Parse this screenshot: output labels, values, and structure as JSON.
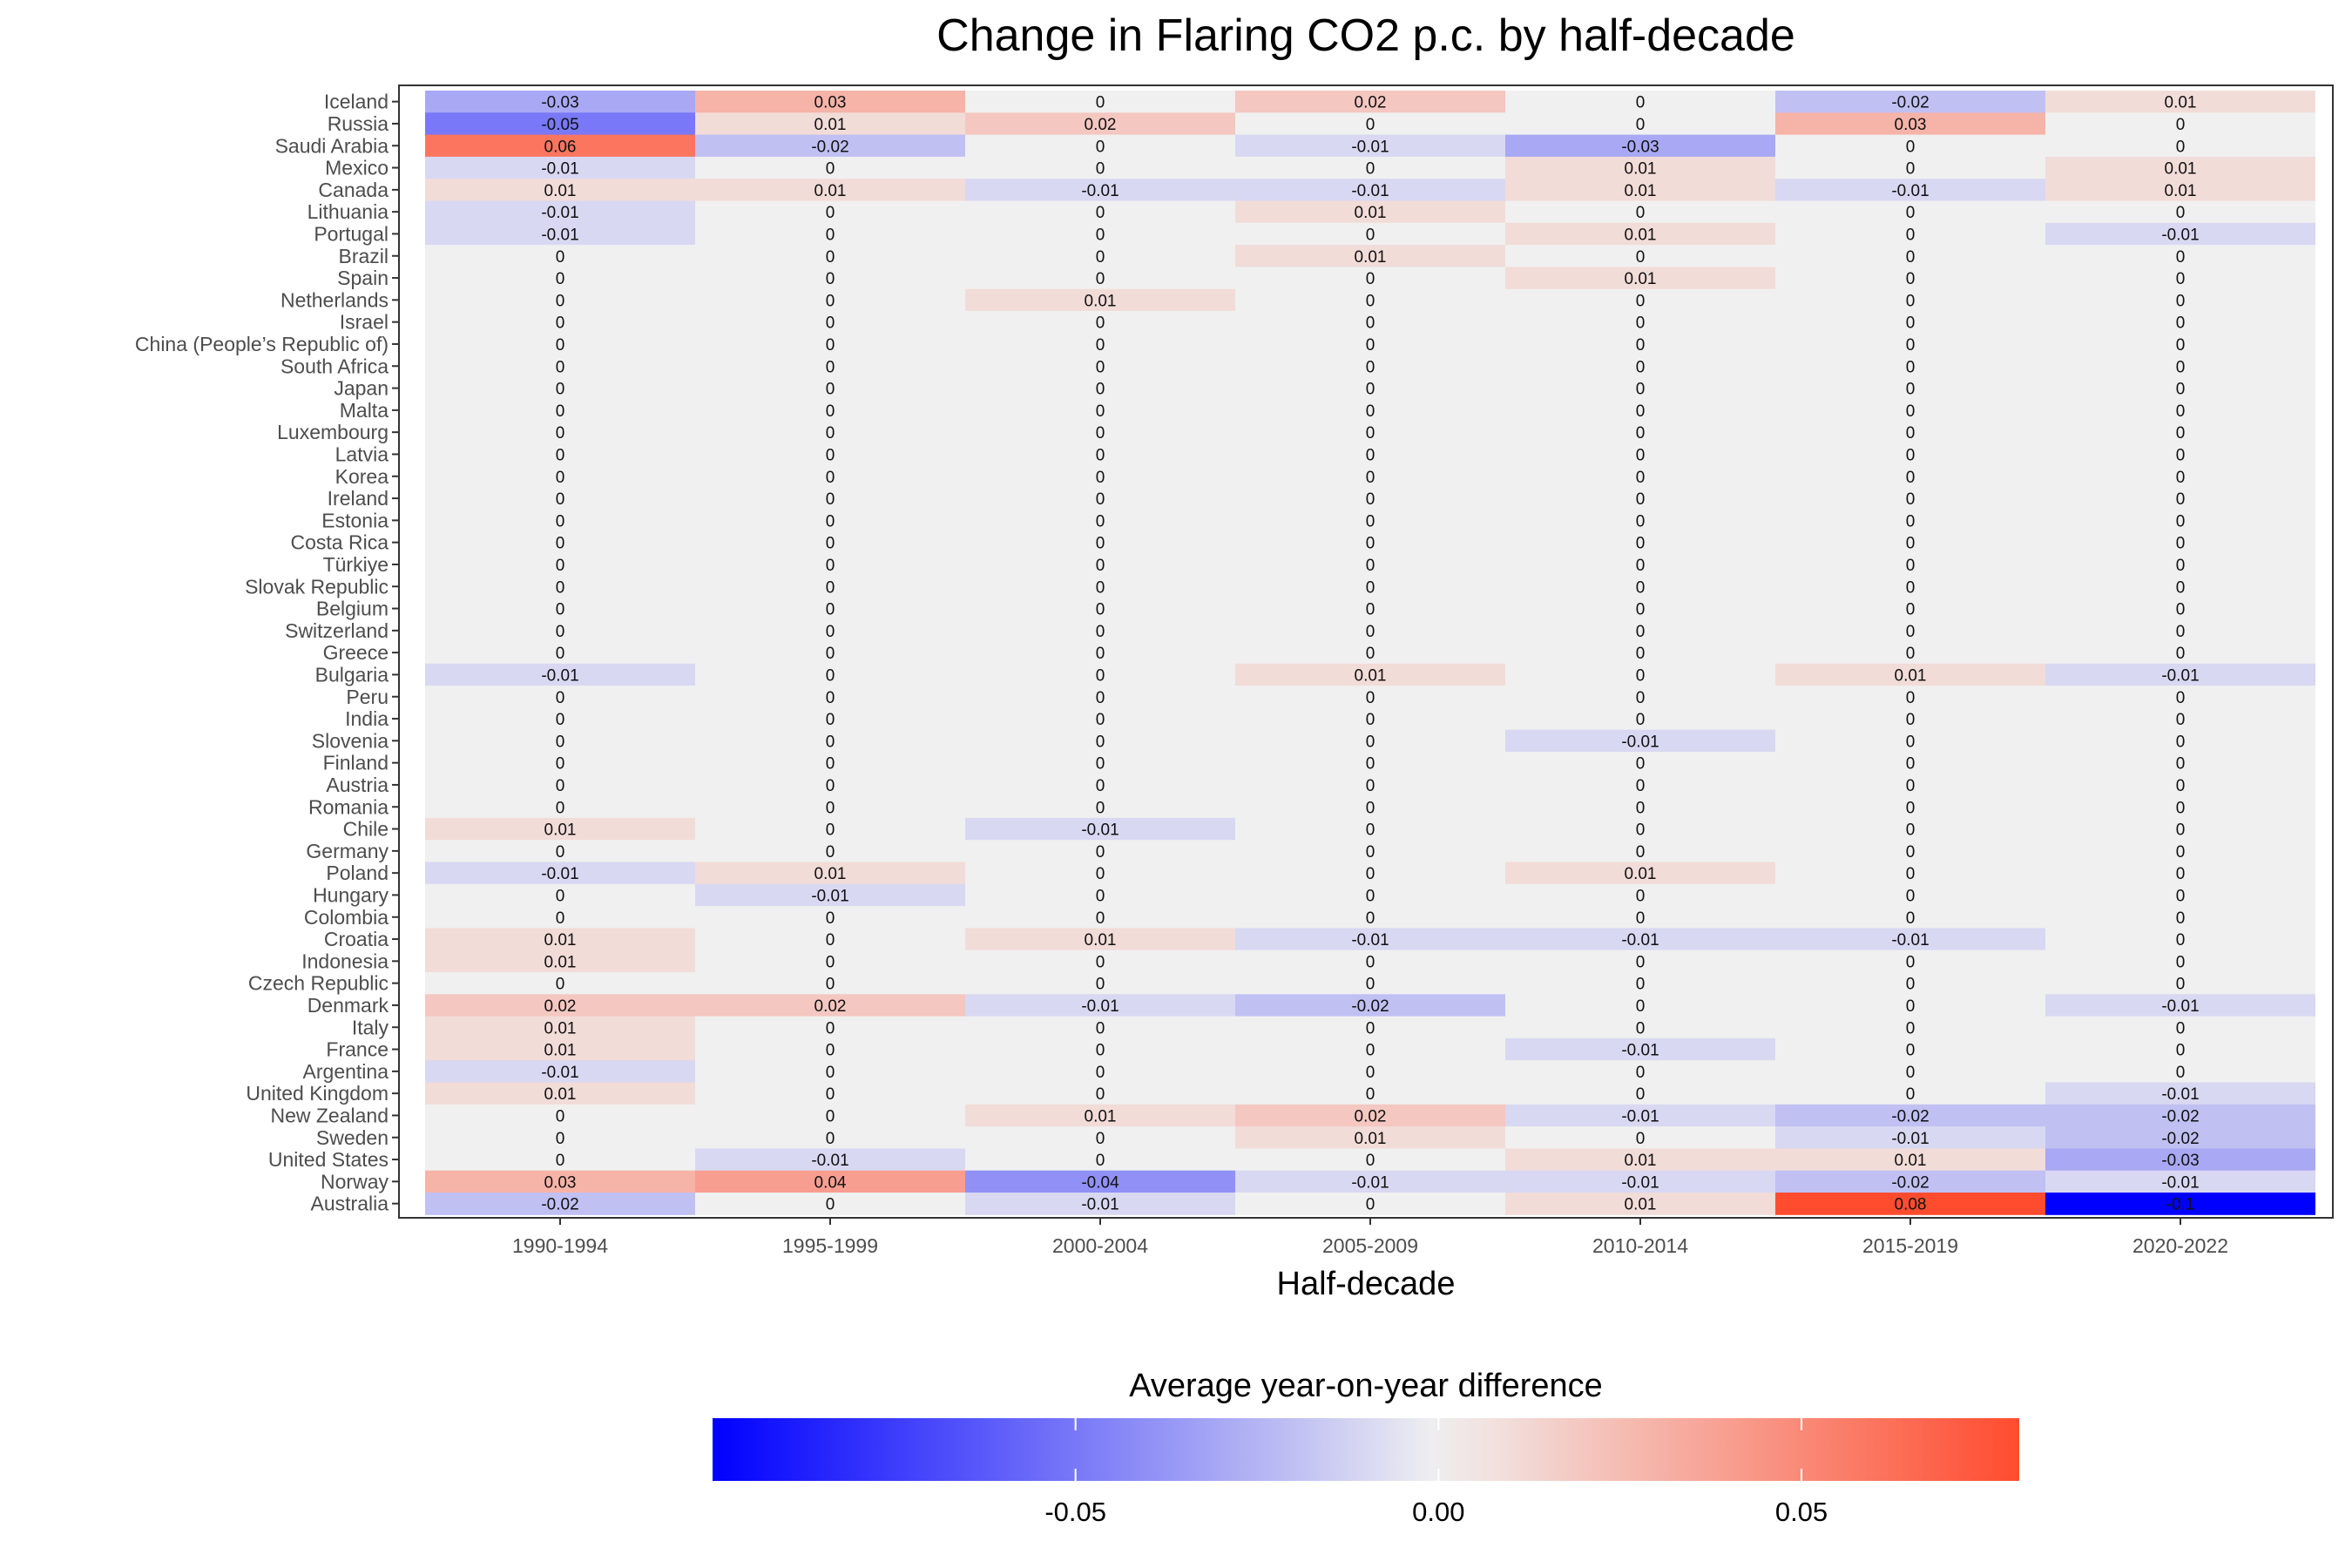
{
  "chart_data": {
    "type": "heatmap",
    "title": "Change in Flaring CO2 p.c. by half-decade",
    "xlabel": "Half-decade",
    "ylabel": "",
    "columns": [
      "1990-1994",
      "1995-1999",
      "2000-2004",
      "2005-2009",
      "2010-2014",
      "2015-2019",
      "2020-2022"
    ],
    "rows": [
      {
        "country": "Iceland",
        "values": [
          -0.03,
          0.03,
          0,
          0.02,
          0,
          -0.02,
          0.01
        ]
      },
      {
        "country": "Russia",
        "values": [
          -0.05,
          0.01,
          0.02,
          0,
          0,
          0.03,
          0
        ]
      },
      {
        "country": "Saudi Arabia",
        "values": [
          0.06,
          -0.02,
          0,
          -0.01,
          -0.03,
          0,
          0
        ]
      },
      {
        "country": "Mexico",
        "values": [
          -0.01,
          0,
          0,
          0,
          0.01,
          0,
          0.01
        ]
      },
      {
        "country": "Canada",
        "values": [
          0.01,
          0.01,
          -0.01,
          -0.01,
          0.01,
          -0.01,
          0.01
        ]
      },
      {
        "country": "Lithuania",
        "values": [
          -0.01,
          0,
          0,
          0.01,
          0,
          0,
          0
        ]
      },
      {
        "country": "Portugal",
        "values": [
          -0.01,
          0,
          0,
          0,
          0.01,
          0,
          -0.01
        ]
      },
      {
        "country": "Brazil",
        "values": [
          0,
          0,
          0,
          0.01,
          0,
          0,
          0
        ]
      },
      {
        "country": "Spain",
        "values": [
          0,
          0,
          0,
          0,
          0.01,
          0,
          0
        ]
      },
      {
        "country": "Netherlands",
        "values": [
          0,
          0,
          0.01,
          0,
          0,
          0,
          0
        ]
      },
      {
        "country": "Israel",
        "values": [
          0,
          0,
          0,
          0,
          0,
          0,
          0
        ]
      },
      {
        "country": "China (People’s Republic of)",
        "values": [
          0,
          0,
          0,
          0,
          0,
          0,
          0
        ]
      },
      {
        "country": "South Africa",
        "values": [
          0,
          0,
          0,
          0,
          0,
          0,
          0
        ]
      },
      {
        "country": "Japan",
        "values": [
          0,
          0,
          0,
          0,
          0,
          0,
          0
        ]
      },
      {
        "country": "Malta",
        "values": [
          0,
          0,
          0,
          0,
          0,
          0,
          0
        ]
      },
      {
        "country": "Luxembourg",
        "values": [
          0,
          0,
          0,
          0,
          0,
          0,
          0
        ]
      },
      {
        "country": "Latvia",
        "values": [
          0,
          0,
          0,
          0,
          0,
          0,
          0
        ]
      },
      {
        "country": "Korea",
        "values": [
          0,
          0,
          0,
          0,
          0,
          0,
          0
        ]
      },
      {
        "country": "Ireland",
        "values": [
          0,
          0,
          0,
          0,
          0,
          0,
          0
        ]
      },
      {
        "country": "Estonia",
        "values": [
          0,
          0,
          0,
          0,
          0,
          0,
          0
        ]
      },
      {
        "country": "Costa Rica",
        "values": [
          0,
          0,
          0,
          0,
          0,
          0,
          0
        ]
      },
      {
        "country": "Türkiye",
        "values": [
          0,
          0,
          0,
          0,
          0,
          0,
          0
        ]
      },
      {
        "country": "Slovak Republic",
        "values": [
          0,
          0,
          0,
          0,
          0,
          0,
          0
        ]
      },
      {
        "country": "Belgium",
        "values": [
          0,
          0,
          0,
          0,
          0,
          0,
          0
        ]
      },
      {
        "country": "Switzerland",
        "values": [
          0,
          0,
          0,
          0,
          0,
          0,
          0
        ]
      },
      {
        "country": "Greece",
        "values": [
          0,
          0,
          0,
          0,
          0,
          0,
          0
        ]
      },
      {
        "country": "Bulgaria",
        "values": [
          -0.01,
          0,
          0,
          0.01,
          0,
          0.01,
          -0.01
        ]
      },
      {
        "country": "Peru",
        "values": [
          0,
          0,
          0,
          0,
          0,
          0,
          0
        ]
      },
      {
        "country": "India",
        "values": [
          0,
          0,
          0,
          0,
          0,
          0,
          0
        ]
      },
      {
        "country": "Slovenia",
        "values": [
          0,
          0,
          0,
          0,
          -0.01,
          0,
          0
        ]
      },
      {
        "country": "Finland",
        "values": [
          0,
          0,
          0,
          0,
          0,
          0,
          0
        ]
      },
      {
        "country": "Austria",
        "values": [
          0,
          0,
          0,
          0,
          0,
          0,
          0
        ]
      },
      {
        "country": "Romania",
        "values": [
          0,
          0,
          0,
          0,
          0,
          0,
          0
        ]
      },
      {
        "country": "Chile",
        "values": [
          0.01,
          0,
          -0.01,
          0,
          0,
          0,
          0
        ]
      },
      {
        "country": "Germany",
        "values": [
          0,
          0,
          0,
          0,
          0,
          0,
          0
        ]
      },
      {
        "country": "Poland",
        "values": [
          -0.01,
          0.01,
          0,
          0,
          0.01,
          0,
          0
        ]
      },
      {
        "country": "Hungary",
        "values": [
          0,
          -0.01,
          0,
          0,
          0,
          0,
          0
        ]
      },
      {
        "country": "Colombia",
        "values": [
          0,
          0,
          0,
          0,
          0,
          0,
          0
        ]
      },
      {
        "country": "Croatia",
        "values": [
          0.01,
          0,
          0.01,
          -0.01,
          -0.01,
          -0.01,
          0
        ]
      },
      {
        "country": "Indonesia",
        "values": [
          0.01,
          0,
          0,
          0,
          0,
          0,
          0
        ]
      },
      {
        "country": "Czech Republic",
        "values": [
          0,
          0,
          0,
          0,
          0,
          0,
          0
        ]
      },
      {
        "country": "Denmark",
        "values": [
          0.02,
          0.02,
          -0.01,
          -0.02,
          0,
          0,
          -0.01
        ]
      },
      {
        "country": "Italy",
        "values": [
          0.01,
          0,
          0,
          0,
          0,
          0,
          0
        ]
      },
      {
        "country": "France",
        "values": [
          0.01,
          0,
          0,
          0,
          -0.01,
          0,
          0
        ]
      },
      {
        "country": "Argentina",
        "values": [
          -0.01,
          0,
          0,
          0,
          0,
          0,
          0
        ]
      },
      {
        "country": "United Kingdom",
        "values": [
          0.01,
          0,
          0,
          0,
          0,
          0,
          -0.01
        ]
      },
      {
        "country": "New Zealand",
        "values": [
          0,
          0,
          0.01,
          0.02,
          -0.01,
          -0.02,
          -0.02
        ]
      },
      {
        "country": "Sweden",
        "values": [
          0,
          0,
          0,
          0.01,
          0,
          -0.01,
          -0.02
        ]
      },
      {
        "country": "United States",
        "values": [
          0,
          -0.01,
          0,
          0,
          0.01,
          0.01,
          -0.03
        ]
      },
      {
        "country": "Norway",
        "values": [
          0.03,
          0.04,
          -0.04,
          -0.01,
          -0.01,
          -0.02,
          -0.01
        ]
      },
      {
        "country": "Australia",
        "values": [
          -0.02,
          0,
          -0.01,
          0,
          0.01,
          0.08,
          -0.1
        ]
      }
    ],
    "legend": {
      "title": "Average year-on-year difference",
      "ticks": [
        -0.05,
        0.0,
        0.05
      ],
      "tick_labels": [
        "-0.05",
        "0.00",
        "0.05"
      ],
      "range": [
        -0.1,
        0.08
      ],
      "placement": "bottom"
    },
    "colors": {
      "low": "#0000ff",
      "mid": "#f0f0f0",
      "high": "#ff4c2f"
    }
  }
}
